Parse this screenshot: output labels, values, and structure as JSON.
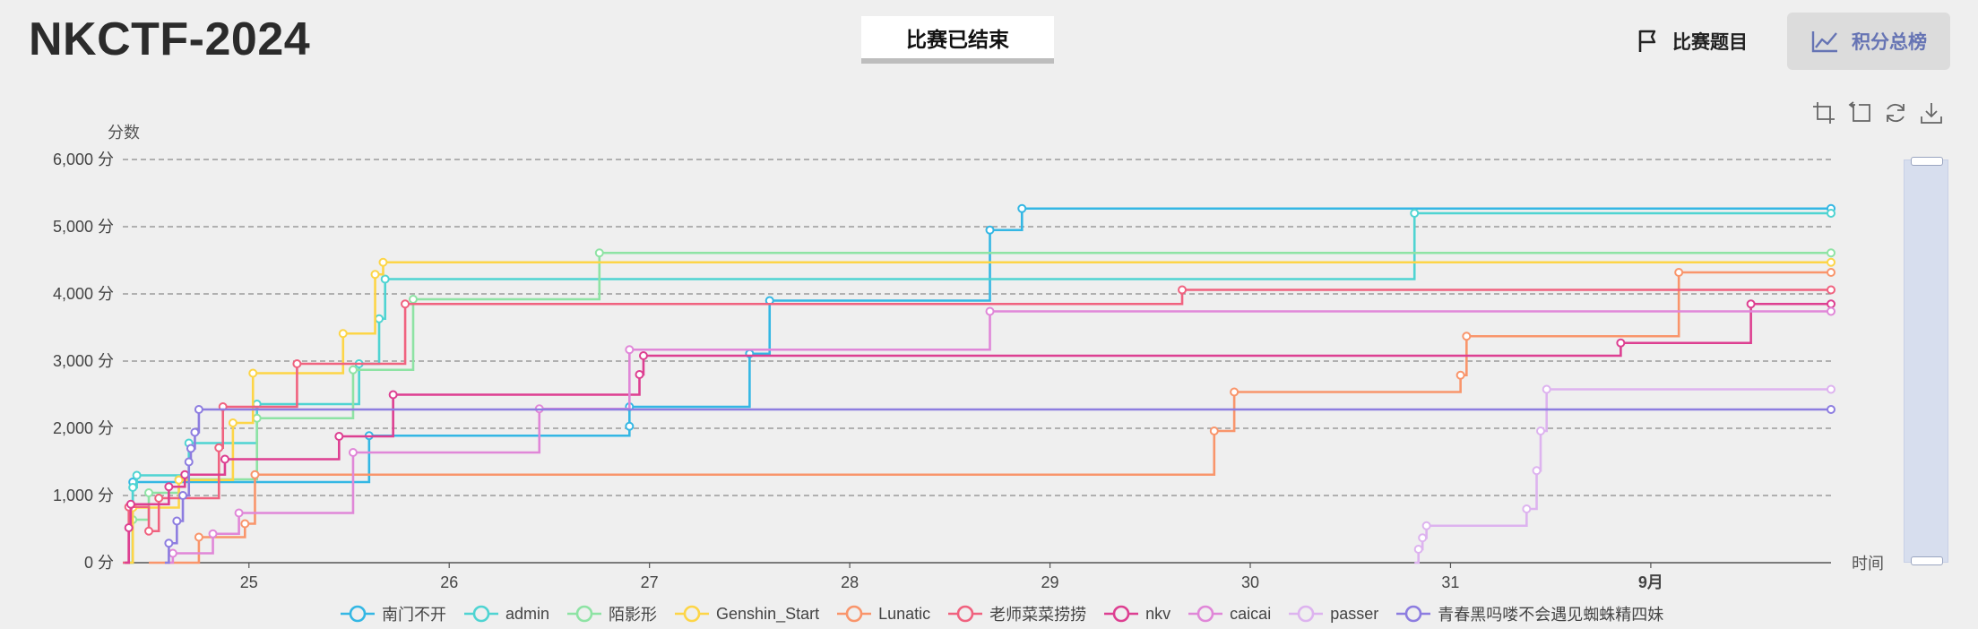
{
  "header": {
    "title": "NKCTF-2024",
    "status": "比赛已结束",
    "nav": {
      "problems": "比赛题目",
      "scoreboard": "积分总榜"
    }
  },
  "toolbox": {
    "icons": [
      "zoom-crop-icon",
      "zoom-back-icon",
      "restore-icon",
      "download-icon"
    ]
  },
  "chart_data": {
    "type": "line",
    "step": true,
    "ylabel": "分数",
    "xlabel": "时间",
    "ylim": [
      0,
      6000
    ],
    "yticks": [
      0,
      1000,
      2000,
      3000,
      4000,
      5000,
      6000
    ],
    "ytick_labels": [
      "0 分",
      "1,000 分",
      "2,000 分",
      "3,000 分",
      "4,000 分",
      "5,000 分",
      "6,000 分"
    ],
    "xlim": [
      24.37,
      32.9
    ],
    "xticks": [
      25,
      26,
      27,
      28,
      29,
      30,
      31,
      32
    ],
    "xtick_labels": [
      "25",
      "26",
      "27",
      "28",
      "29",
      "30",
      "31",
      "9月"
    ],
    "grid": "horizontal dashed",
    "legend_position": "bottom",
    "series": [
      {
        "name": "南门不开",
        "color": "#34b7e4",
        "points": [
          [
            24.4,
            0
          ],
          [
            24.42,
            1200
          ],
          [
            25.6,
            1890
          ],
          [
            26.9,
            2030
          ],
          [
            26.9,
            2320
          ],
          [
            27.5,
            3110
          ],
          [
            27.6,
            3900
          ],
          [
            28.7,
            4950
          ],
          [
            28.86,
            5270
          ],
          [
            32.9,
            5270
          ]
        ]
      },
      {
        "name": "admin",
        "color": "#4fd4d2",
        "points": [
          [
            24.37,
            0
          ],
          [
            24.42,
            1120
          ],
          [
            24.44,
            1300
          ],
          [
            24.7,
            1780
          ],
          [
            25.04,
            2360
          ],
          [
            25.55,
            2960
          ],
          [
            25.65,
            3630
          ],
          [
            25.68,
            4220
          ],
          [
            30.82,
            5200
          ],
          [
            32.9,
            5200
          ]
        ]
      },
      {
        "name": "陌影形",
        "color": "#8ee3a4",
        "points": [
          [
            24.38,
            0
          ],
          [
            24.42,
            640
          ],
          [
            24.5,
            1040
          ],
          [
            24.65,
            1240
          ],
          [
            25.04,
            2150
          ],
          [
            25.52,
            2870
          ],
          [
            25.82,
            3920
          ],
          [
            26.75,
            4610
          ],
          [
            32.9,
            4610
          ]
        ]
      },
      {
        "name": "Genshin_Start",
        "color": "#fdd547",
        "points": [
          [
            24.38,
            0
          ],
          [
            24.42,
            820
          ],
          [
            24.65,
            1230
          ],
          [
            24.92,
            2080
          ],
          [
            25.02,
            2820
          ],
          [
            25.47,
            3410
          ],
          [
            25.63,
            4290
          ],
          [
            25.67,
            4470
          ],
          [
            32.9,
            4470
          ]
        ]
      },
      {
        "name": "Lunatic",
        "color": "#f9956b",
        "points": [
          [
            24.5,
            0
          ],
          [
            24.75,
            380
          ],
          [
            24.98,
            580
          ],
          [
            25.03,
            1310
          ],
          [
            29.82,
            1960
          ],
          [
            29.92,
            2540
          ],
          [
            31.05,
            2790
          ],
          [
            31.08,
            3370
          ],
          [
            32.14,
            4320
          ],
          [
            32.9,
            4320
          ]
        ]
      },
      {
        "name": "老师菜菜捞捞",
        "color": "#f0627f",
        "points": [
          [
            24.37,
            0
          ],
          [
            24.4,
            830
          ],
          [
            24.5,
            470
          ],
          [
            24.55,
            960
          ],
          [
            24.85,
            1710
          ],
          [
            24.87,
            2320
          ],
          [
            25.24,
            2960
          ],
          [
            25.78,
            3850
          ],
          [
            29.66,
            4060
          ],
          [
            32.9,
            4060
          ]
        ]
      },
      {
        "name": "nkv",
        "color": "#dd3f91",
        "points": [
          [
            24.38,
            0
          ],
          [
            24.4,
            520
          ],
          [
            24.41,
            870
          ],
          [
            24.6,
            1130
          ],
          [
            24.68,
            1310
          ],
          [
            24.88,
            1540
          ],
          [
            25.45,
            1880
          ],
          [
            25.72,
            2500
          ],
          [
            26.95,
            2800
          ],
          [
            26.97,
            3080
          ],
          [
            31.85,
            3270
          ],
          [
            32.5,
            3850
          ],
          [
            32.9,
            3850
          ]
        ]
      },
      {
        "name": "caicai",
        "color": "#e087d8",
        "points": [
          [
            24.6,
            0
          ],
          [
            24.62,
            140
          ],
          [
            24.82,
            430
          ],
          [
            24.95,
            740
          ],
          [
            25.52,
            1640
          ],
          [
            26.45,
            2290
          ],
          [
            26.9,
            3170
          ],
          [
            28.7,
            3740
          ],
          [
            32.9,
            3740
          ]
        ]
      },
      {
        "name": "passer",
        "color": "#ddb3ef",
        "points": [
          [
            30.82,
            0
          ],
          [
            30.84,
            200
          ],
          [
            30.86,
            370
          ],
          [
            30.88,
            550
          ],
          [
            31.38,
            800
          ],
          [
            31.43,
            1370
          ],
          [
            31.45,
            1960
          ],
          [
            31.48,
            2580
          ],
          [
            32.9,
            2580
          ]
        ]
      },
      {
        "name": "青春黑吗喽不会遇见蜘蛛精四妹",
        "color": "#8d7de0",
        "points": [
          [
            24.58,
            0
          ],
          [
            24.6,
            290
          ],
          [
            24.64,
            620
          ],
          [
            24.67,
            1000
          ],
          [
            24.7,
            1500
          ],
          [
            24.71,
            1700
          ],
          [
            24.73,
            1940
          ],
          [
            24.75,
            2280
          ],
          [
            32.9,
            2280
          ]
        ]
      }
    ]
  }
}
